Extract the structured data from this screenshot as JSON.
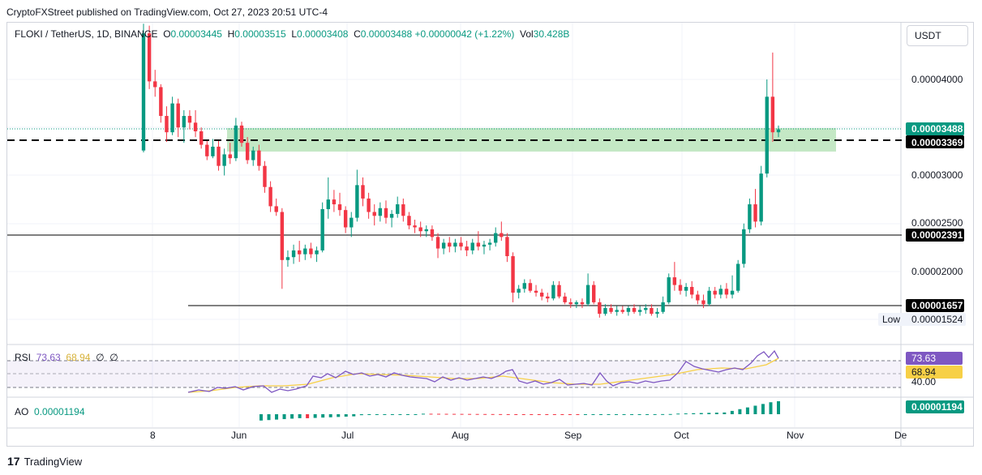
{
  "publisher_line": "CryptoFXStreet published on TradingView.com, Oct 27, 2023 20:51 UTC-4",
  "legend": {
    "symbol": "FLOKI / TetherUS, 1D, BINANCE",
    "o_label": "O",
    "o_value": "0.00003445",
    "h_label": "H",
    "h_value": "0.00003515",
    "l_label": "L",
    "l_value": "0.00003408",
    "c_label": "C",
    "c_value": "0.00003488",
    "change": "+0.00000042 (+1.22%)",
    "vol_label": "Vol",
    "vol_value": "30.428B"
  },
  "currency_button": "USDT",
  "rsi_legend": {
    "name": "RSI",
    "value": "73.63",
    "ma": "68.94",
    "e1": "∅",
    "e2": "∅"
  },
  "ao_legend": {
    "name": "AO",
    "value": "0.00001194"
  },
  "footer": {
    "brand": "TradingView"
  },
  "colors": {
    "up": "#089981",
    "down": "#f23645",
    "zone": "#a5dca6",
    "rsi_line": "#7e57c2",
    "rsi_ma": "#f7d046"
  },
  "chart_data": {
    "type": "candlestick",
    "y_axis_ticks": [
      "0.00004000",
      "0.00003000",
      "0.00002500",
      "0.00002000"
    ],
    "price_labels": [
      {
        "text": "0.00003488",
        "kind": "last"
      },
      {
        "text": "0.00003369",
        "kind": "level"
      },
      {
        "text": "0.00002391",
        "kind": "level"
      },
      {
        "text": "0.00001657",
        "kind": "level"
      }
    ],
    "low_label": "Low",
    "low_value": "0.00001524",
    "x_axis_ticks": [
      "8",
      "Jun",
      "Jul",
      "Aug",
      "Sep",
      "Oct",
      "Nov",
      "De"
    ],
    "horizontal_levels": [
      3.369e-05,
      2.391e-05,
      1.657e-05
    ],
    "zone": {
      "from": 3.23e-05,
      "to": 3.48e-05
    },
    "ylim": [
      1.45e-05,
      4.55e-05
    ],
    "candles": [
      [
        3.26e-05,
        4.58e-05,
        3.24e-05,
        4.48e-05
      ],
      [
        4.48e-05,
        4.56e-05,
        3.9e-05,
        3.98e-05
      ],
      [
        3.98e-05,
        4.1e-05,
        3.82e-05,
        3.92e-05
      ],
      [
        3.92e-05,
        3.95e-05,
        3.55e-05,
        3.62e-05
      ],
      [
        3.62e-05,
        3.72e-05,
        3.35e-05,
        3.45e-05
      ],
      [
        3.45e-05,
        3.82e-05,
        3.42e-05,
        3.75e-05
      ],
      [
        3.75e-05,
        3.8e-05,
        3.4e-05,
        3.5e-05
      ],
      [
        3.5e-05,
        3.68e-05,
        3.34e-05,
        3.62e-05
      ],
      [
        3.62e-05,
        3.68e-05,
        3.48e-05,
        3.55e-05
      ],
      [
        3.55e-05,
        3.68e-05,
        3.4e-05,
        3.46e-05
      ],
      [
        3.46e-05,
        3.5e-05,
        3.28e-05,
        3.32e-05
      ],
      [
        3.32e-05,
        3.36e-05,
        3.16e-05,
        3.2e-05
      ],
      [
        3.2e-05,
        3.38e-05,
        3.18e-05,
        3.3e-05
      ],
      [
        3.3e-05,
        3.36e-05,
        3.05e-05,
        3.1e-05
      ],
      [
        3.1e-05,
        3.28e-05,
        3e-05,
        3.22e-05
      ],
      [
        3.22e-05,
        3.34e-05,
        3.12e-05,
        3.18e-05
      ],
      [
        3.18e-05,
        3.6e-05,
        3.15e-05,
        3.52e-05
      ],
      [
        3.52e-05,
        3.56e-05,
        3.3e-05,
        3.34e-05
      ],
      [
        3.34e-05,
        3.4e-05,
        3.12e-05,
        3.16e-05
      ],
      [
        3.16e-05,
        3.3e-05,
        3.1e-05,
        3.26e-05
      ],
      [
        3.26e-05,
        3.32e-05,
        3.05e-05,
        3.1e-05
      ],
      [
        3.1e-05,
        3.15e-05,
        2.82e-05,
        2.88e-05
      ],
      [
        2.88e-05,
        2.94e-05,
        2.62e-05,
        2.68e-05
      ],
      [
        2.68e-05,
        2.76e-05,
        2.58e-05,
        2.62e-05
      ],
      [
        2.62e-05,
        2.66e-05,
        1.82e-05,
        2.12e-05
      ],
      [
        2.12e-05,
        2.22e-05,
        2.05e-05,
        2.15e-05
      ],
      [
        2.15e-05,
        2.28e-05,
        2.08e-05,
        2.22e-05
      ],
      [
        2.22e-05,
        2.32e-05,
        2.1e-05,
        2.18e-05
      ],
      [
        2.18e-05,
        2.28e-05,
        2.12e-05,
        2.24e-05
      ],
      [
        2.24e-05,
        2.3e-05,
        2.14e-05,
        2.18e-05
      ],
      [
        2.18e-05,
        2.26e-05,
        2.1e-05,
        2.22e-05
      ],
      [
        2.22e-05,
        2.72e-05,
        2.2e-05,
        2.65e-05
      ],
      [
        2.65e-05,
        2.98e-05,
        2.55e-05,
        2.75e-05
      ],
      [
        2.75e-05,
        2.85e-05,
        2.62e-05,
        2.7e-05
      ],
      [
        2.7e-05,
        2.82e-05,
        2.58e-05,
        2.64e-05
      ],
      [
        2.64e-05,
        2.68e-05,
        2.4e-05,
        2.46e-05
      ],
      [
        2.46e-05,
        2.62e-05,
        2.36e-05,
        2.56e-05
      ],
      [
        2.56e-05,
        3.06e-05,
        2.52e-05,
        2.9e-05
      ],
      [
        2.9e-05,
        2.98e-05,
        2.68e-05,
        2.76e-05
      ],
      [
        2.76e-05,
        2.82e-05,
        2.55e-05,
        2.62e-05
      ],
      [
        2.62e-05,
        2.7e-05,
        2.48e-05,
        2.58e-05
      ],
      [
        2.58e-05,
        2.72e-05,
        2.52e-05,
        2.66e-05
      ],
      [
        2.66e-05,
        2.74e-05,
        2.5e-05,
        2.56e-05
      ],
      [
        2.56e-05,
        2.64e-05,
        2.46e-05,
        2.6e-05
      ],
      [
        2.6e-05,
        2.78e-05,
        2.56e-05,
        2.7e-05
      ],
      [
        2.7e-05,
        2.76e-05,
        2.52e-05,
        2.58e-05
      ],
      [
        2.58e-05,
        2.62e-05,
        2.44e-05,
        2.48e-05
      ],
      [
        2.48e-05,
        2.54e-05,
        2.4e-05,
        2.46e-05
      ],
      [
        2.46e-05,
        2.52e-05,
        2.36e-05,
        2.42e-05
      ],
      [
        2.42e-05,
        2.48e-05,
        2.36e-05,
        2.44e-05
      ],
      [
        2.44e-05,
        2.48e-05,
        2.32e-05,
        2.36e-05
      ],
      [
        2.36e-05,
        2.4e-05,
        2.14e-05,
        2.24e-05
      ],
      [
        2.24e-05,
        2.34e-05,
        2.18e-05,
        2.3e-05
      ],
      [
        2.3e-05,
        2.36e-05,
        2.2e-05,
        2.26e-05
      ],
      [
        2.26e-05,
        2.34e-05,
        2.2e-05,
        2.3e-05
      ],
      [
        2.3e-05,
        2.36e-05,
        2.22e-05,
        2.26e-05
      ],
      [
        2.26e-05,
        2.32e-05,
        2.16e-05,
        2.22e-05
      ],
      [
        2.22e-05,
        2.34e-05,
        2.18e-05,
        2.3e-05
      ],
      [
        2.3e-05,
        2.42e-05,
        2.22e-05,
        2.26e-05
      ],
      [
        2.26e-05,
        2.32e-05,
        2.18e-05,
        2.28e-05
      ],
      [
        2.28e-05,
        2.34e-05,
        2.22e-05,
        2.3e-05
      ],
      [
        2.3e-05,
        2.46e-05,
        2.26e-05,
        2.4e-05
      ],
      [
        2.4e-05,
        2.52e-05,
        2.32e-05,
        2.36e-05
      ],
      [
        2.36e-05,
        2.4e-05,
        2.1e-05,
        2.16e-05
      ],
      [
        2.16e-05,
        2.2e-05,
        1.68e-05,
        1.78e-05
      ],
      [
        1.78e-05,
        1.86e-05,
        1.72e-05,
        1.82e-05
      ],
      [
        1.82e-05,
        1.92e-05,
        1.78e-05,
        1.88e-05
      ],
      [
        1.88e-05,
        1.92e-05,
        1.78e-05,
        1.8e-05
      ],
      [
        1.8e-05,
        1.86e-05,
        1.74e-05,
        1.78e-05
      ],
      [
        1.78e-05,
        1.82e-05,
        1.7e-05,
        1.74e-05
      ],
      [
        1.74e-05,
        1.78e-05,
        1.68e-05,
        1.72e-05
      ],
      [
        1.72e-05,
        1.9e-05,
        1.7e-05,
        1.86e-05
      ],
      [
        1.86e-05,
        1.9e-05,
        1.72e-05,
        1.74e-05
      ],
      [
        1.74e-05,
        1.78e-05,
        1.66e-05,
        1.68e-05
      ],
      [
        1.68e-05,
        1.72e-05,
        1.62e-05,
        1.66e-05
      ],
      [
        1.66e-05,
        1.7e-05,
        1.62e-05,
        1.68e-05
      ],
      [
        1.68e-05,
        1.72e-05,
        1.62e-05,
        1.66e-05
      ],
      [
        1.66e-05,
        1.98e-05,
        1.64e-05,
        1.86e-05
      ],
      [
        1.86e-05,
        1.9e-05,
        1.66e-05,
        1.68e-05
      ],
      [
        1.68e-05,
        1.72e-05,
        1.52e-05,
        1.56e-05
      ],
      [
        1.56e-05,
        1.66e-05,
        1.54e-05,
        1.62e-05
      ],
      [
        1.62e-05,
        1.66e-05,
        1.56e-05,
        1.58e-05
      ],
      [
        1.58e-05,
        1.64e-05,
        1.54e-05,
        1.6e-05
      ],
      [
        1.6e-05,
        1.64e-05,
        1.56e-05,
        1.58e-05
      ],
      [
        1.58e-05,
        1.64e-05,
        1.54e-05,
        1.62e-05
      ],
      [
        1.62e-05,
        1.66e-05,
        1.56e-05,
        1.58e-05
      ],
      [
        1.58e-05,
        1.64e-05,
        1.54e-05,
        1.6e-05
      ],
      [
        1.6e-05,
        1.66e-05,
        1.56e-05,
        1.62e-05
      ],
      [
        1.62e-05,
        1.66e-05,
        1.54e-05,
        1.56e-05
      ],
      [
        1.56e-05,
        1.62e-05,
        1.52e-05,
        1.58e-05
      ],
      [
        1.58e-05,
        1.74e-05,
        1.56e-05,
        1.68e-05
      ],
      [
        1.68e-05,
        1.98e-05,
        1.66e-05,
        1.94e-05
      ],
      [
        1.94e-05,
        2.1e-05,
        1.8e-05,
        1.86e-05
      ],
      [
        1.86e-05,
        1.92e-05,
        1.76e-05,
        1.8e-05
      ],
      [
        1.8e-05,
        1.88e-05,
        1.74e-05,
        1.84e-05
      ],
      [
        1.84e-05,
        1.9e-05,
        1.72e-05,
        1.76e-05
      ],
      [
        1.76e-05,
        1.8e-05,
        1.66e-05,
        1.7e-05
      ],
      [
        1.7e-05,
        1.76e-05,
        1.62e-05,
        1.66e-05
      ],
      [
        1.66e-05,
        1.84e-05,
        1.64e-05,
        1.8e-05
      ],
      [
        1.8e-05,
        1.84e-05,
        1.72e-05,
        1.76e-05
      ],
      [
        1.76e-05,
        1.86e-05,
        1.72e-05,
        1.82e-05
      ],
      [
        1.82e-05,
        1.88e-05,
        1.72e-05,
        1.76e-05
      ],
      [
        1.76e-05,
        1.96e-05,
        1.72e-05,
        1.8e-05
      ],
      [
        1.8e-05,
        2.12e-05,
        1.78e-05,
        2.08e-05
      ],
      [
        2.08e-05,
        2.5e-05,
        2.04e-05,
        2.44e-05
      ],
      [
        2.44e-05,
        2.76e-05,
        2.4e-05,
        2.7e-05
      ],
      [
        2.7e-05,
        2.86e-05,
        2.46e-05,
        2.52e-05
      ],
      [
        2.52e-05,
        3.1e-05,
        2.48e-05,
        3.02e-05
      ],
      [
        3.02e-05,
        4e-05,
        2.98e-05,
        3.82e-05
      ],
      [
        3.82e-05,
        4.28e-05,
        3.35e-05,
        3.45e-05
      ],
      [
        3.45e-05,
        3.52e-05,
        3.4e-05,
        3.48e-05
      ]
    ],
    "rsi_axis_labels": [
      "40.00"
    ],
    "rsi_value_labels": [
      "73.63",
      "68.94"
    ],
    "ao_value_label": "0.00001194"
  }
}
